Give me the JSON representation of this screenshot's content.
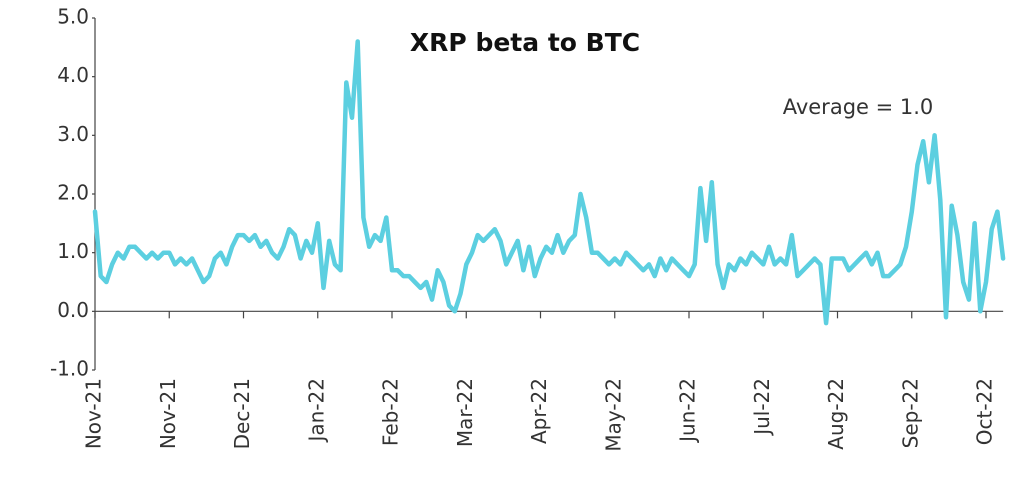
{
  "chart_data": {
    "type": "line",
    "title": "XRP beta to BTC",
    "annotation": "Average = 1.0",
    "color": "#5ccfe0",
    "categories": [
      "Nov-21",
      null,
      null,
      null,
      null,
      null,
      null,
      null,
      null,
      null,
      null,
      null,
      null,
      "Nov-21",
      null,
      null,
      null,
      null,
      null,
      null,
      null,
      null,
      null,
      null,
      null,
      null,
      "Dec-21",
      null,
      null,
      null,
      null,
      null,
      null,
      null,
      null,
      null,
      null,
      null,
      null,
      "Jan-22",
      null,
      null,
      null,
      null,
      null,
      null,
      null,
      null,
      null,
      null,
      null,
      null,
      "Feb-22",
      null,
      null,
      null,
      null,
      null,
      null,
      null,
      null,
      null,
      null,
      null,
      null,
      "Mar-22",
      null,
      null,
      null,
      null,
      null,
      null,
      null,
      null,
      null,
      null,
      null,
      null,
      "Apr-22",
      null,
      null,
      null,
      null,
      null,
      null,
      null,
      null,
      null,
      null,
      null,
      null,
      "May-22",
      null,
      null,
      null,
      null,
      null,
      null,
      null,
      null,
      null,
      null,
      null,
      null,
      "Jun-22",
      null,
      null,
      null,
      null,
      null,
      null,
      null,
      null,
      null,
      null,
      null,
      null,
      "Jul-22",
      null,
      null,
      null,
      null,
      null,
      null,
      null,
      null,
      null,
      null,
      null,
      null,
      "Aug-22",
      null,
      null,
      null,
      null,
      null,
      null,
      null,
      null,
      null,
      null,
      null,
      null,
      "Sep-22",
      null,
      null,
      null,
      null,
      null,
      null,
      null,
      null,
      null,
      null,
      null,
      null,
      "Oct-22",
      null,
      null,
      null
    ],
    "values": [
      1.7,
      0.6,
      0.5,
      0.8,
      1.0,
      0.9,
      1.1,
      1.1,
      1.0,
      0.9,
      1.0,
      0.9,
      1.0,
      1.0,
      0.8,
      0.9,
      0.8,
      0.9,
      0.7,
      0.5,
      0.6,
      0.9,
      1.0,
      0.8,
      1.1,
      1.3,
      1.3,
      1.2,
      1.3,
      1.1,
      1.2,
      1.0,
      0.9,
      1.1,
      1.4,
      1.3,
      0.9,
      1.2,
      1.0,
      1.5,
      0.4,
      1.2,
      0.8,
      0.7,
      3.9,
      3.3,
      4.6,
      1.6,
      1.1,
      1.3,
      1.2,
      1.6,
      0.7,
      0.7,
      0.6,
      0.6,
      0.5,
      0.4,
      0.5,
      0.2,
      0.7,
      0.5,
      0.1,
      0.0,
      0.3,
      0.8,
      1.0,
      1.3,
      1.2,
      1.3,
      1.4,
      1.2,
      0.8,
      1.0,
      1.2,
      0.7,
      1.1,
      0.6,
      0.9,
      1.1,
      1.0,
      1.3,
      1.0,
      1.2,
      1.3,
      2.0,
      1.6,
      1.0,
      1.0,
      0.9,
      0.8,
      0.9,
      0.8,
      1.0,
      0.9,
      0.8,
      0.7,
      0.8,
      0.6,
      0.9,
      0.7,
      0.9,
      0.8,
      0.7,
      0.6,
      0.8,
      2.1,
      1.2,
      2.2,
      0.8,
      0.4,
      0.8,
      0.7,
      0.9,
      0.8,
      1.0,
      0.9,
      0.8,
      1.1,
      0.8,
      0.9,
      0.8,
      1.3,
      0.6,
      0.7,
      0.8,
      0.9,
      0.8,
      -0.2,
      0.9,
      0.9,
      0.9,
      0.7,
      0.8,
      0.9,
      1.0,
      0.8,
      1.0,
      0.6,
      0.6,
      0.7,
      0.8,
      1.1,
      1.7,
      2.5,
      2.9,
      2.2,
      3.0,
      1.9,
      -0.1,
      1.8,
      1.3,
      0.5,
      0.2,
      1.5,
      0.0,
      0.5,
      1.4,
      1.7,
      0.9
    ],
    "ylim": [
      -1,
      5
    ],
    "yticks": [
      {
        "value": -1,
        "label": "-1.0"
      },
      {
        "value": 0,
        "label": "0.0"
      },
      {
        "value": 1,
        "label": "1.0"
      },
      {
        "value": 2,
        "label": "2.0"
      },
      {
        "value": 3,
        "label": "3.0"
      },
      {
        "value": 4,
        "label": "4.0"
      },
      {
        "value": 5,
        "label": "5.0"
      }
    ],
    "grid": false
  }
}
